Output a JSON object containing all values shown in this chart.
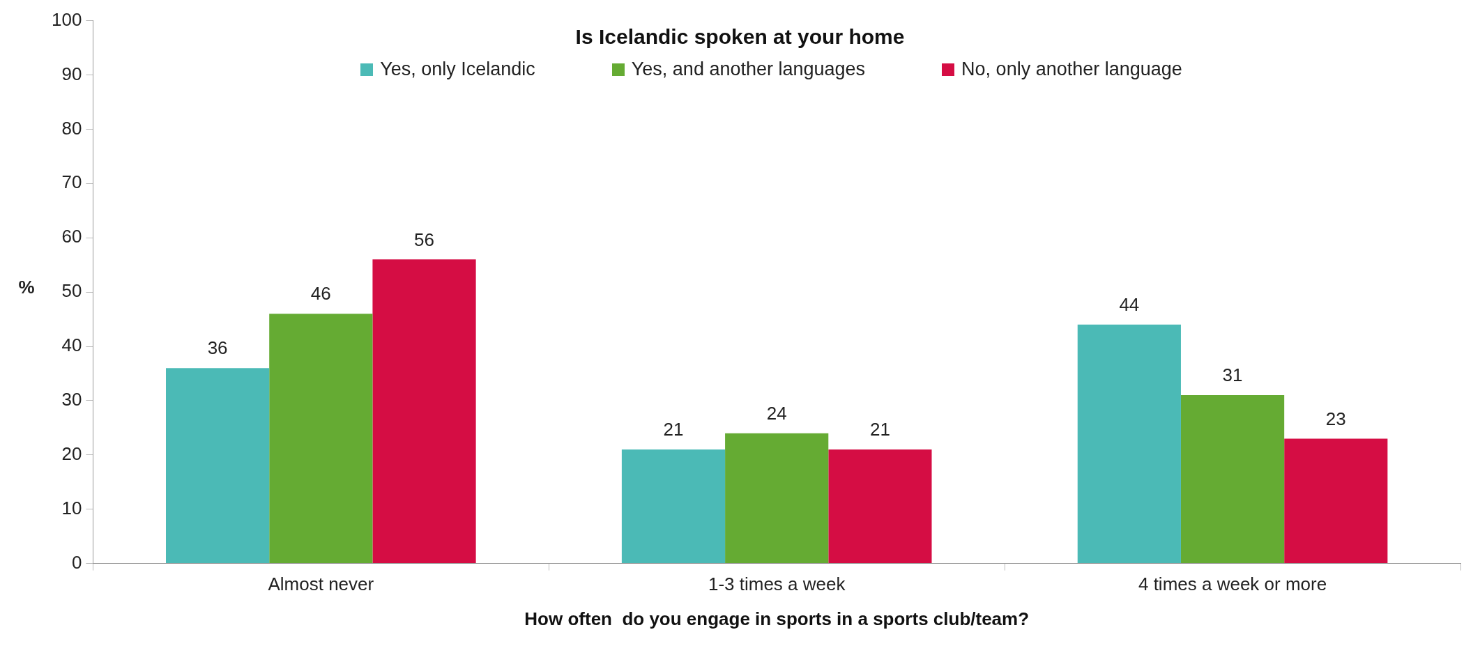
{
  "chart_data": {
    "type": "bar",
    "legend_title": "Is Icelandic spoken at your home",
    "xlabel": "How often  do you engage in sports in a sports club/team?",
    "ylabel": "%",
    "categories": [
      "Almost never",
      "1-3 times a week",
      "4 times a week or more"
    ],
    "series": [
      {
        "name": "Yes, only Icelandic",
        "color": "#4bbab6",
        "values": [
          36,
          21,
          44
        ]
      },
      {
        "name": "Yes, and another languages",
        "color": "#65ab33",
        "values": [
          46,
          24,
          31
        ]
      },
      {
        "name": "No, only another language",
        "color": "#d50d44",
        "values": [
          56,
          21,
          23
        ]
      }
    ],
    "ylim": [
      0,
      100
    ],
    "yticks": [
      0,
      10,
      20,
      30,
      40,
      50,
      60,
      70,
      80,
      90,
      100
    ],
    "grid": false,
    "legend": "top",
    "data_labels": true
  }
}
